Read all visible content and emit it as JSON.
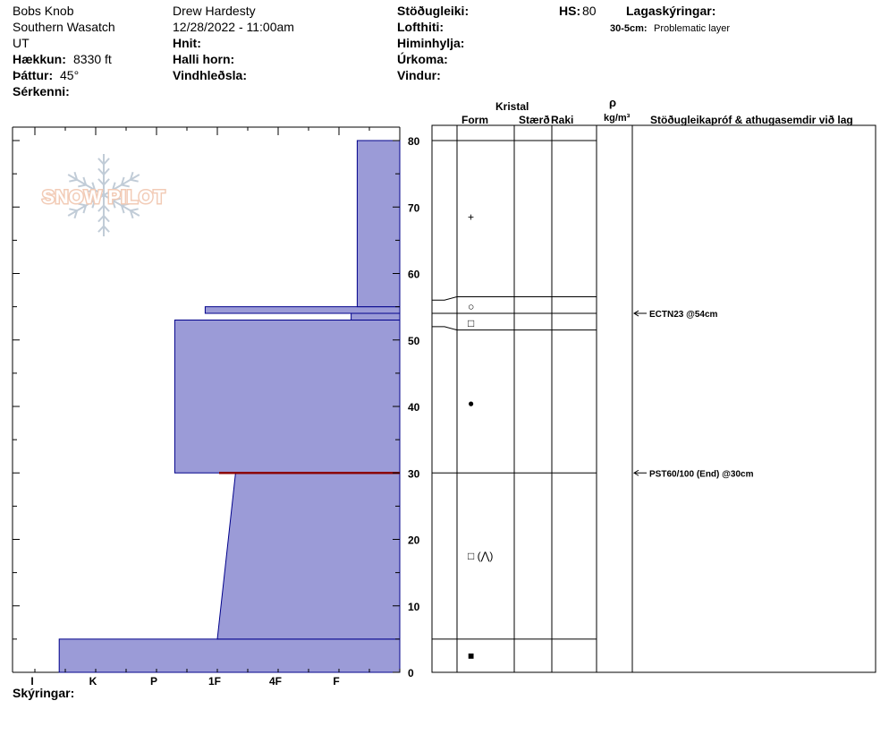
{
  "header": {
    "location": "Bobs Knob",
    "range": "Southern Wasatch",
    "state": "UT",
    "elevation_label": "Hækkun:",
    "elevation_value": "8330 ft",
    "aspect_label": "Þáttur:",
    "aspect_value": "45°",
    "specifics_label": "Sérkenni:",
    "observer": "Drew Hardesty",
    "datetime": "12/28/2022 - 11:00am",
    "coords_label": "Hnit:",
    "slope_label": "Halli horn:",
    "wind_loading_label": "Vindhleðsla:",
    "stability_label": "Stöðugleiki:",
    "air_temp_label": "Lofthiti:",
    "sky_label": "Himinhylja:",
    "precip_label": "Úrkoma:",
    "wind_label": "Vindur:",
    "hs_label": "HS:",
    "hs_value": "80",
    "layer_notes_label": "Lagaskýringar:",
    "layer_note_depth": "30-5cm:",
    "layer_note_text": "Problematic layer"
  },
  "columns": {
    "crystal": "Kristal",
    "form": "Form",
    "size": "Stærð",
    "moisture": "Raki",
    "density_symbol": "ρ",
    "density_unit": "kg/m³",
    "stability_comments": "Stöðugleikapróf & athugasemdir við lag"
  },
  "logo": {
    "text": "SNOW PILOT"
  },
  "footer": {
    "comments_label": "Skýringar:"
  },
  "colors": {
    "hardness_fill": "#9b9bd7",
    "hardness_stroke": "#00008b",
    "problem_layer": "#8b0000"
  },
  "chart_data": {
    "type": "area",
    "title": "",
    "ylabel": "",
    "ylim": [
      0,
      80
    ],
    "y_ticks": [
      0,
      10,
      20,
      30,
      40,
      50,
      60,
      70,
      80
    ],
    "hardness_ticks": [
      "I",
      "K",
      "P",
      "1F",
      "4F",
      "F"
    ],
    "hardness_ticks_desc": "hardness index scale: I=6 ... F=1 (right edge = 0)",
    "hardness_profile": [
      {
        "top": 5,
        "bottom": 0,
        "hardness": 5.6
      },
      {
        "top": 30,
        "bottom": 5,
        "hardness_top": 2.7,
        "hardness_bottom": 3.0
      },
      {
        "top": 53,
        "bottom": 30,
        "hardness": 3.7
      },
      {
        "top": 54,
        "bottom": 53,
        "hardness": 0.8
      },
      {
        "top": 55,
        "bottom": 54,
        "hardness": 3.2
      },
      {
        "top": 80,
        "bottom": 55,
        "hardness": 0.7
      }
    ],
    "layer_boundaries": [
      80,
      56.5,
      54,
      51.5,
      30,
      5
    ],
    "grain_forms": [
      {
        "depth": 68.5,
        "symbol": "+"
      },
      {
        "depth": 55.0,
        "symbol": "○"
      },
      {
        "depth": 52.5,
        "symbol": "□"
      },
      {
        "depth": 40.5,
        "symbol": "●"
      },
      {
        "depth": 17.5,
        "symbol": "□ (⋀)"
      },
      {
        "depth": 2.5,
        "symbol": "■"
      }
    ],
    "stability_tests": [
      {
        "depth": 54,
        "text": "ECTN23 @54cm"
      },
      {
        "depth": 30,
        "text": "PST60/100 (End) @30cm"
      }
    ]
  }
}
